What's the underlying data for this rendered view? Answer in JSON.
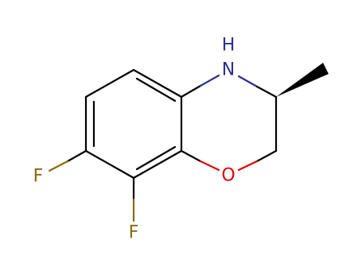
{
  "atoms": {
    "h": "H",
    "n": "N",
    "o": "O",
    "f_left": "F",
    "f_bottom": "F"
  }
}
